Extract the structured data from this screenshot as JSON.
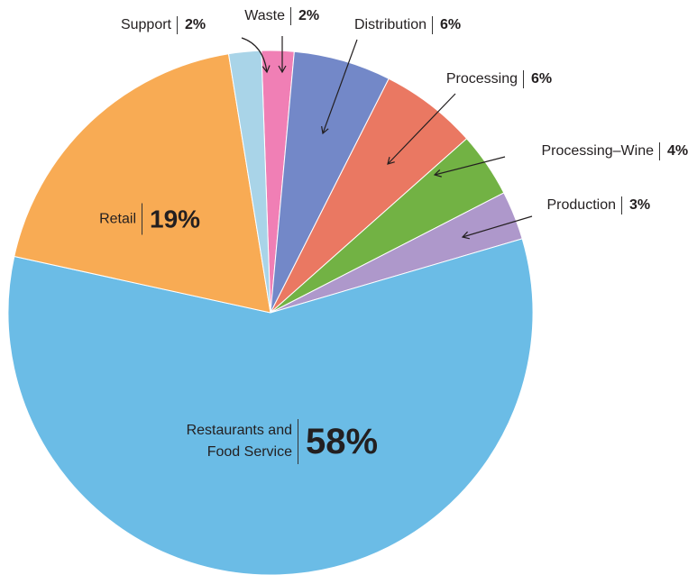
{
  "chart_data": {
    "type": "pie",
    "categories": [
      "Waste",
      "Distribution",
      "Processing",
      "Processing–Wine",
      "Production",
      "Restaurants and Food Service",
      "Retail",
      "Support"
    ],
    "values": [
      2,
      6,
      6,
      4,
      3,
      58,
      19,
      2
    ],
    "value_labels": [
      "2%",
      "6%",
      "6%",
      "4%",
      "3%",
      "58%",
      "19%",
      "2%"
    ],
    "colors": [
      "#f07fb5",
      "#7388c8",
      "#ea7862",
      "#72b244",
      "#ae98cb",
      "#6bbce6",
      "#f8ab54",
      "#a9d4e8"
    ]
  }
}
